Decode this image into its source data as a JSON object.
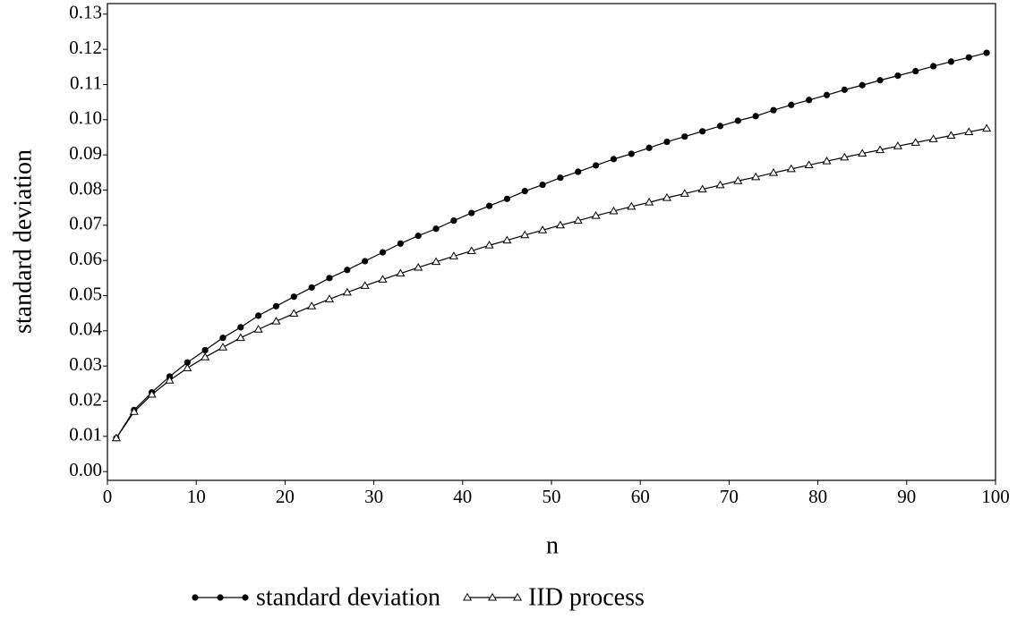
{
  "chart_data": {
    "type": "line",
    "x_label": "n",
    "y_label": "standard deviation",
    "x": [
      1,
      3,
      5,
      7,
      9,
      11,
      13,
      15,
      17,
      19,
      21,
      23,
      25,
      27,
      29,
      31,
      33,
      35,
      37,
      39,
      41,
      43,
      45,
      47,
      49,
      51,
      53,
      55,
      57,
      59,
      61,
      63,
      65,
      67,
      69,
      71,
      73,
      75,
      77,
      79,
      81,
      83,
      85,
      87,
      89,
      91,
      93,
      95,
      97,
      99
    ],
    "series": [
      {
        "name": "standard deviation",
        "color": "#000000",
        "marker": "circle",
        "values": [
          0.0095,
          0.0175,
          0.0225,
          0.027,
          0.031,
          0.0345,
          0.038,
          0.041,
          0.0443,
          0.047,
          0.0497,
          0.0523,
          0.055,
          0.0573,
          0.0598,
          0.0623,
          0.0648,
          0.067,
          0.069,
          0.0713,
          0.0735,
          0.0755,
          0.0775,
          0.0797,
          0.0815,
          0.0835,
          0.0852,
          0.087,
          0.0888,
          0.0903,
          0.092,
          0.0937,
          0.0952,
          0.0967,
          0.0982,
          0.0997,
          0.101,
          0.1027,
          0.1042,
          0.1056,
          0.107,
          0.1085,
          0.1098,
          0.1112,
          0.1125,
          0.1138,
          0.1152,
          0.1165,
          0.1177,
          0.119
        ]
      },
      {
        "name": "IID process",
        "color": "#000000",
        "marker": "triangle",
        "values": [
          0.0095,
          0.017,
          0.0219,
          0.0259,
          0.0294,
          0.0325,
          0.0353,
          0.038,
          0.0404,
          0.0427,
          0.0449,
          0.047,
          0.049,
          0.0509,
          0.0528,
          0.0546,
          0.0563,
          0.058,
          0.0596,
          0.0612,
          0.0627,
          0.0643,
          0.0657,
          0.0672,
          0.0686,
          0.07,
          0.0713,
          0.0727,
          0.074,
          0.0753,
          0.0765,
          0.0778,
          0.079,
          0.0802,
          0.0814,
          0.0826,
          0.0837,
          0.0849,
          0.086,
          0.0871,
          0.0882,
          0.0893,
          0.0904,
          0.0914,
          0.0925,
          0.0935,
          0.0945,
          0.0955,
          0.0965,
          0.0975
        ]
      }
    ],
    "xlim": [
      0,
      100
    ],
    "xticks": [
      0,
      10,
      20,
      30,
      40,
      50,
      60,
      70,
      80,
      90,
      100
    ],
    "ylim": [
      -0.0025,
      0.133
    ],
    "yticks": [
      {
        "value": 0,
        "label": "0.00"
      },
      {
        "value": 0.01,
        "label": "0.01"
      },
      {
        "value": 0.02,
        "label": "0.02"
      },
      {
        "value": 0.03,
        "label": "0.03"
      },
      {
        "value": 0.04,
        "label": "0.04"
      },
      {
        "value": 0.05,
        "label": "0.05"
      },
      {
        "value": 0.06,
        "label": "0.06"
      },
      {
        "value": 0.07,
        "label": "0.07"
      },
      {
        "value": 0.08,
        "label": "0.08"
      },
      {
        "value": 0.09,
        "label": "0.09"
      },
      {
        "value": 0.1,
        "label": "0.10"
      },
      {
        "value": 0.11,
        "label": "0.11"
      },
      {
        "value": 0.12,
        "label": "0.12"
      },
      {
        "value": 0.13,
        "label": "0.13"
      }
    ],
    "grid": false,
    "legend": "bottom"
  }
}
